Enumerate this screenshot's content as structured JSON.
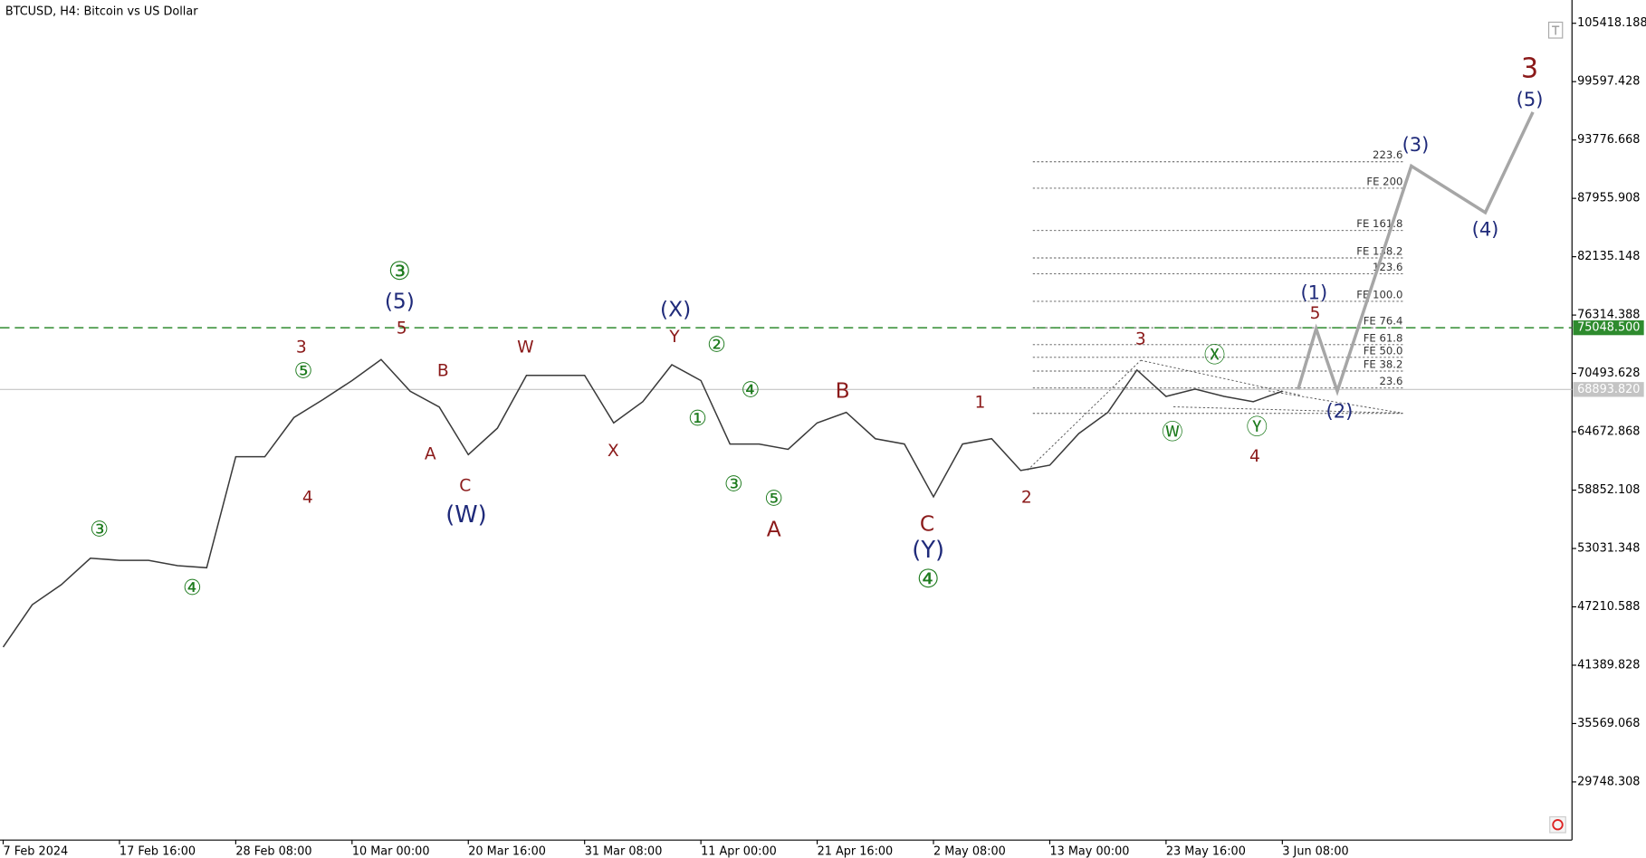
{
  "chart_data": {
    "type": "line",
    "title": "BTCUSD, H4:  Bitcoin vs US Dollar",
    "categories": [
      "7 Feb 2024",
      null,
      null,
      null,
      "17 Feb 16:00",
      null,
      null,
      null,
      "28 Feb 08:00",
      null,
      null,
      null,
      "10 Mar 00:00",
      null,
      null,
      null,
      "20 Mar 16:00",
      null,
      null,
      null,
      "31 Mar 08:00",
      null,
      null,
      null,
      "11 Apr 00:00",
      null,
      null,
      null,
      "21 Apr 16:00",
      null,
      null,
      null,
      "2 May 08:00",
      null,
      null,
      null,
      "13 May 00:00",
      null,
      null,
      null,
      "23 May 16:00",
      null,
      null,
      null,
      "3 Jun 08:00"
    ],
    "values": [
      43200,
      47420,
      49420,
      52060,
      51850,
      51850,
      51320,
      51110,
      62180,
      62180,
      66090,
      67880,
      69780,
      71880,
      68720,
      67140,
      62390,
      65030,
      70300,
      70300,
      70300,
      65560,
      67670,
      71360,
      69780,
      63450,
      63450,
      62920,
      65560,
      66610,
      63980,
      63450,
      58180,
      63450,
      63980,
      60810,
      61340,
      64500,
      66610,
      70830,
      68200,
      68930,
      68200,
      67670,
      68720
    ],
    "color": "#3a3a3a",
    "projection": {
      "color": "#a6a6a6",
      "values": [
        68933,
        74943,
        68720,
        91183,
        86543,
        96560
      ]
    },
    "ylim": [
      23950,
      107740
    ],
    "yticks": [
      105418.188,
      99597.428,
      93776.668,
      87955.908,
      82135.148,
      76314.388,
      70493.628,
      64672.868,
      58852.108,
      53031.348,
      47210.588,
      41389.828,
      35569.068,
      29748.308
    ],
    "markers": [
      {
        "value": 75048.5,
        "label": "75048.500",
        "color": "#2e8b2e"
      },
      {
        "value": 68893.82,
        "label": "68893.820",
        "color": "#c4c4c4"
      }
    ],
    "fib_levels": [
      {
        "label": "223.6",
        "value": 91604
      },
      {
        "label": "FE 200",
        "value": 88967
      },
      {
        "label": "FE 161.8",
        "value": 84750
      },
      {
        "label": "FE 138.2",
        "value": 82009
      },
      {
        "label": "123.6",
        "value": 80426
      },
      {
        "label": "FE 100.0",
        "value": 77684
      },
      {
        "label": "FE 76.4",
        "value": 75048
      },
      {
        "label": "FE 61.8",
        "value": 73361
      },
      {
        "label": "FE 50.0",
        "value": 72096
      },
      {
        "label": "FE 38.2",
        "value": 70725
      },
      {
        "label": "23.6",
        "value": 69038
      },
      {
        "label": null,
        "value": 66507
      }
    ],
    "annotations": [
      {
        "text": "③",
        "color": "#1e7b1e"
      },
      {
        "text": "④",
        "color": "#1e7b1e"
      },
      {
        "text": "3",
        "color": "#8b1a1a"
      },
      {
        "text": "⑤",
        "color": "#1e7b1e"
      },
      {
        "text": "4",
        "color": "#8b1a1a"
      },
      {
        "text": "③",
        "color": "#1e7b1e"
      },
      {
        "text": "(5)",
        "color": "#1f2a7a"
      },
      {
        "text": "5",
        "color": "#8b1a1a"
      },
      {
        "text": "B",
        "color": "#8b1a1a"
      },
      {
        "text": "A",
        "color": "#8b1a1a"
      },
      {
        "text": "C",
        "color": "#8b1a1a"
      },
      {
        "text": "(W)",
        "color": "#1f2a7a"
      },
      {
        "text": "W",
        "color": "#8b1a1a"
      },
      {
        "text": "X",
        "color": "#8b1a1a"
      },
      {
        "text": "(X)",
        "color": "#1f2a7a"
      },
      {
        "text": "Y",
        "color": "#8b1a1a"
      },
      {
        "text": "②",
        "color": "#1e7b1e"
      },
      {
        "text": "①",
        "color": "#1e7b1e"
      },
      {
        "text": "④",
        "color": "#1e7b1e"
      },
      {
        "text": "③",
        "color": "#1e7b1e"
      },
      {
        "text": "⑤",
        "color": "#1e7b1e"
      },
      {
        "text": "A",
        "color": "#8b1a1a"
      },
      {
        "text": "B",
        "color": "#8b1a1a"
      },
      {
        "text": "C",
        "color": "#8b1a1a"
      },
      {
        "text": "(Y)",
        "color": "#1f2a7a"
      },
      {
        "text": "④",
        "color": "#1e7b1e"
      },
      {
        "text": "1",
        "color": "#8b1a1a"
      },
      {
        "text": "2",
        "color": "#8b1a1a"
      },
      {
        "text": "3",
        "color": "#8b1a1a"
      },
      {
        "text": "Ⓦ",
        "color": "#1e7b1e"
      },
      {
        "text": "Ⓧ",
        "color": "#1e7b1e"
      },
      {
        "text": "Ⓨ",
        "color": "#1e7b1e"
      },
      {
        "text": "4",
        "color": "#8b1a1a"
      },
      {
        "text": "5",
        "color": "#8b1a1a"
      },
      {
        "text": "(1)",
        "color": "#1f2a7a"
      },
      {
        "text": "(2)",
        "color": "#1f2a7a"
      },
      {
        "text": "(3)",
        "color": "#1f2a7a"
      },
      {
        "text": "(4)",
        "color": "#1f2a7a"
      },
      {
        "text": "(5)",
        "color": "#1f2a7a"
      },
      {
        "text": "3",
        "color": "#8b1a1a"
      }
    ]
  }
}
